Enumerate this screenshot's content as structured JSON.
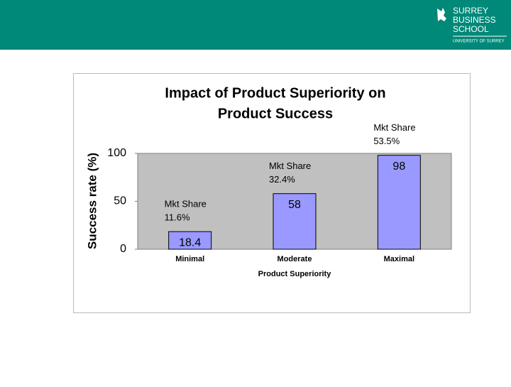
{
  "header": {
    "logo_lines": [
      "SURREY",
      "BUSINESS",
      "SCHOOL"
    ],
    "logo_sub": "UNIVERSITY OF SURREY"
  },
  "chart_data": {
    "type": "bar",
    "title": "Impact of Product Superiority on",
    "subtitle": "Product Success",
    "categories": [
      "Minimal",
      "Moderate",
      "Maximal"
    ],
    "values": [
      18.4,
      58,
      98
    ],
    "color": "#9999ff",
    "annotations": [
      {
        "label": "Mkt Share",
        "text": "11.6%"
      },
      {
        "label": "Mkt Share",
        "text": "32.4%"
      },
      {
        "label": "Mkt Share",
        "text": "53.5%"
      }
    ],
    "ylim": [
      0,
      100
    ],
    "yticks": [
      0,
      50,
      100
    ],
    "y_label": "Success rate (%)",
    "x_label": "Product Superiority",
    "plot_background": "#c0c0c0"
  }
}
